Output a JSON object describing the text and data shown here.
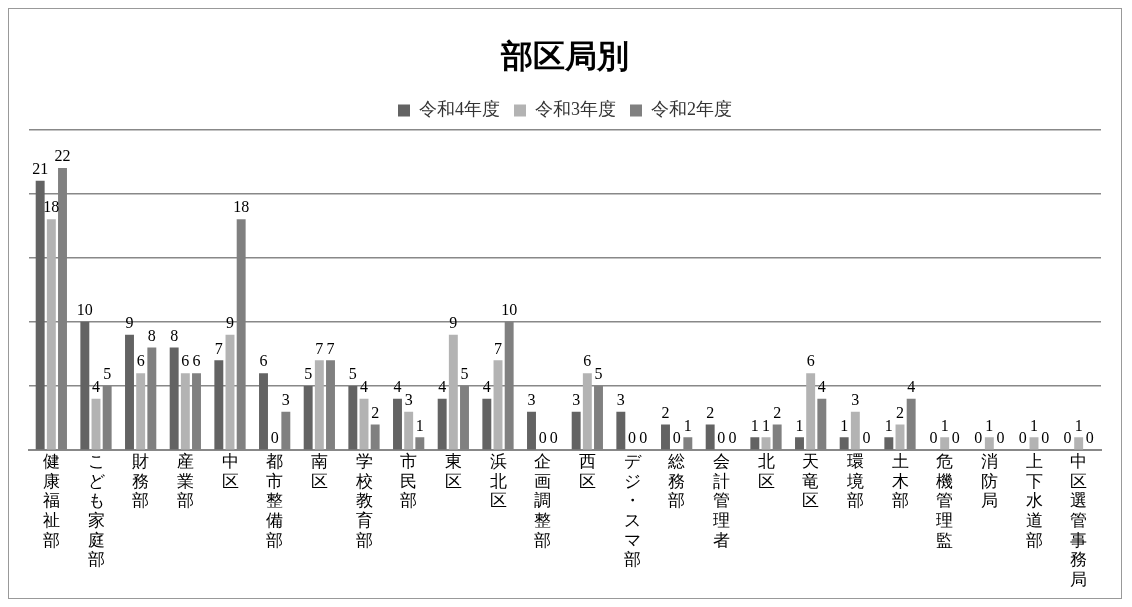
{
  "chart_data": {
    "type": "bar",
    "title": "部区局別",
    "categories": [
      "健康福祉部",
      "こども家庭部",
      "財務部",
      "産業部",
      "中区",
      "都市整備部",
      "南区",
      "学校教育部",
      "市民部",
      "東区",
      "浜北区",
      "企画調整部",
      "西区",
      "デジ・スマ部",
      "総務部",
      "会計管理者",
      "北区",
      "天竜区",
      "環境部",
      "土木部",
      "危機管理監",
      "消防局",
      "上下水道部",
      "中区選管事務局"
    ],
    "series": [
      {
        "name": "令和4年度",
        "color": "#636363",
        "values": [
          21,
          10,
          9,
          8,
          7,
          6,
          5,
          5,
          4,
          4,
          4,
          3,
          3,
          3,
          2,
          2,
          1,
          1,
          1,
          1,
          0,
          0,
          0,
          0
        ]
      },
      {
        "name": "令和3年度",
        "color": "#b3b3b3",
        "values": [
          18,
          4,
          6,
          6,
          9,
          0,
          7,
          4,
          3,
          9,
          7,
          0,
          6,
          0,
          0,
          0,
          1,
          6,
          3,
          2,
          1,
          1,
          1,
          1
        ]
      },
      {
        "name": "令和2年度",
        "color": "#808080",
        "values": [
          22,
          5,
          8,
          6,
          18,
          3,
          7,
          2,
          1,
          5,
          10,
          0,
          5,
          0,
          1,
          0,
          2,
          4,
          0,
          4,
          0,
          0,
          0,
          0
        ]
      }
    ],
    "ylim": [
      0,
      25
    ],
    "yticks": [
      {
        "value": 0,
        "label": null
      },
      {
        "value": 5,
        "label": null
      },
      {
        "value": 10,
        "label": null
      },
      {
        "value": 15,
        "label": null
      },
      {
        "value": 20,
        "label": null
      },
      {
        "value": 25,
        "label": null
      }
    ],
    "tick_labels": "x",
    "grid": "y",
    "legend": "top",
    "data_labels": true
  }
}
